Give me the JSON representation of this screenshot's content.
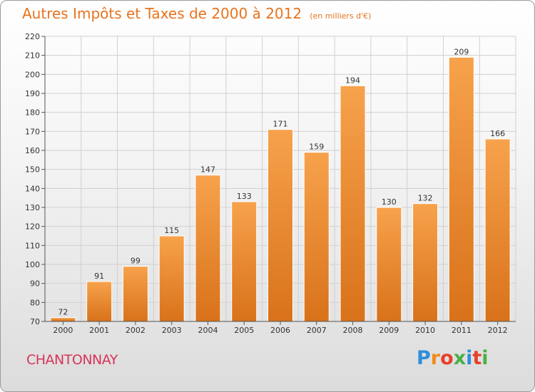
{
  "title": "Autres Impôts et Taxes de 2000 à 2012",
  "subtitle": "(en milliers d'€)",
  "commune": "CHANTONNAY",
  "logo": {
    "letters": [
      "P",
      "r",
      "o",
      "x",
      "i",
      "t",
      "i"
    ],
    "colors": [
      "#2f8fd8",
      "#f08c1c",
      "#e8402a",
      "#48b048",
      "#2f8fd8",
      "#e8402a",
      "#48b048"
    ]
  },
  "colors": {
    "bar": "#f0963a",
    "bar_dark": "#d8741c",
    "accent": "#e8731e",
    "commune": "#d6365a"
  },
  "chart_data": {
    "type": "bar",
    "title": "Autres Impôts et Taxes de 2000 à 2012",
    "subtitle": "(en milliers d'€)",
    "xlabel": "",
    "ylabel": "",
    "categories": [
      "2000",
      "2001",
      "2002",
      "2003",
      "2004",
      "2005",
      "2006",
      "2007",
      "2008",
      "2009",
      "2010",
      "2011",
      "2012"
    ],
    "values": [
      72,
      91,
      99,
      115,
      147,
      133,
      171,
      159,
      194,
      130,
      132,
      209,
      166
    ],
    "ylim": [
      70,
      220
    ],
    "yticks": [
      70,
      80,
      90,
      100,
      110,
      120,
      130,
      140,
      150,
      160,
      170,
      180,
      190,
      200,
      210,
      220
    ],
    "grid": true,
    "data_labels": true
  }
}
